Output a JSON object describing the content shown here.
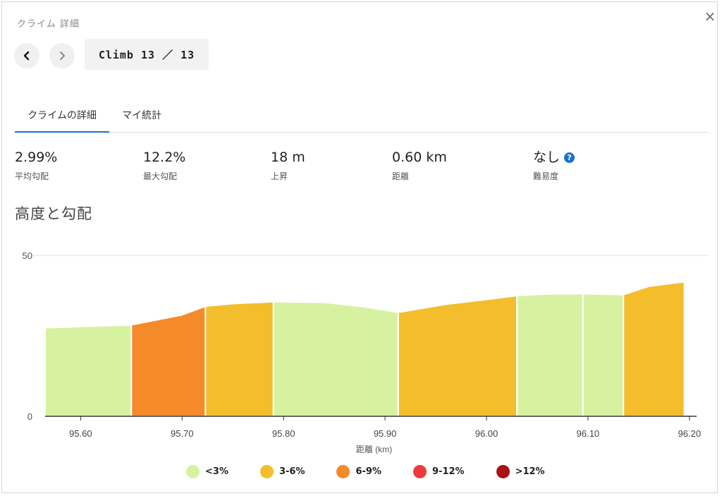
{
  "dialog": {
    "title": "クライム 詳細",
    "close_symbol": "×"
  },
  "nav": {
    "prev_symbol": "‹",
    "next_symbol": "›",
    "climb_label": "Climb 13 ／ 13"
  },
  "tabs": [
    {
      "label": "クライムの詳細",
      "active": true
    },
    {
      "label": "マイ統計",
      "active": false
    }
  ],
  "stats": [
    {
      "value": "2.99%",
      "label": "平均勾配"
    },
    {
      "value": "12.2%",
      "label": "最大勾配"
    },
    {
      "value": "18 m",
      "label": "上昇"
    },
    {
      "value": "0.60 km",
      "label": "距離"
    },
    {
      "value": "なし",
      "label": "難易度",
      "help": "?"
    }
  ],
  "section_title": "高度と勾配",
  "colors": {
    "accent": "#1a73c8",
    "lt3": "#d6f2a0",
    "3to6": "#f3bd2b",
    "6to9": "#f58a2a",
    "9to12": "#ec3b3b",
    "gt12": "#a81313"
  },
  "chart_data": {
    "type": "area",
    "xlabel": "距離 (km)",
    "ylabel": "",
    "xlim": [
      95.565,
      96.205
    ],
    "ylim": [
      0,
      50
    ],
    "yticks": [
      "0",
      "50"
    ],
    "xticks": [
      "95.60",
      "95.70",
      "95.80",
      "95.90",
      "96.00",
      "96.10",
      "96.20"
    ],
    "grid": true,
    "legend_position": "bottom",
    "segments": [
      {
        "grade": "<3%",
        "points": [
          [
            95.565,
            27.5
          ],
          [
            95.6,
            27.9
          ],
          [
            95.65,
            28.4
          ]
        ]
      },
      {
        "grade": "6-9%",
        "points": [
          [
            95.65,
            28.4
          ],
          [
            95.7,
            31.5
          ],
          [
            95.723,
            34.2
          ]
        ]
      },
      {
        "grade": "3-6%",
        "points": [
          [
            95.723,
            34.2
          ],
          [
            95.75,
            35.0
          ],
          [
            95.79,
            35.6
          ]
        ]
      },
      {
        "grade": "<3%",
        "points": [
          [
            95.79,
            35.6
          ],
          [
            95.84,
            35.4
          ],
          [
            95.88,
            34.0
          ],
          [
            95.913,
            32.3
          ]
        ]
      },
      {
        "grade": "3-6%",
        "points": [
          [
            95.913,
            32.3
          ],
          [
            95.96,
            34.8
          ],
          [
            96.0,
            36.3
          ],
          [
            96.03,
            37.5
          ]
        ]
      },
      {
        "grade": "<3%",
        "points": [
          [
            96.03,
            37.5
          ],
          [
            96.06,
            38.0
          ],
          [
            96.095,
            38.1
          ]
        ]
      },
      {
        "grade": "<3%",
        "points": [
          [
            96.095,
            38.1
          ],
          [
            96.12,
            37.9
          ],
          [
            96.135,
            37.8
          ]
        ]
      },
      {
        "grade": "3-6%",
        "points": [
          [
            96.135,
            37.8
          ],
          [
            96.16,
            40.4
          ],
          [
            96.195,
            41.8
          ]
        ]
      }
    ],
    "legend": [
      {
        "label": "<3%"
      },
      {
        "label": "3-6%"
      },
      {
        "label": "6-9%"
      },
      {
        "label": "9-12%"
      },
      {
        "label": ">12%"
      }
    ]
  }
}
